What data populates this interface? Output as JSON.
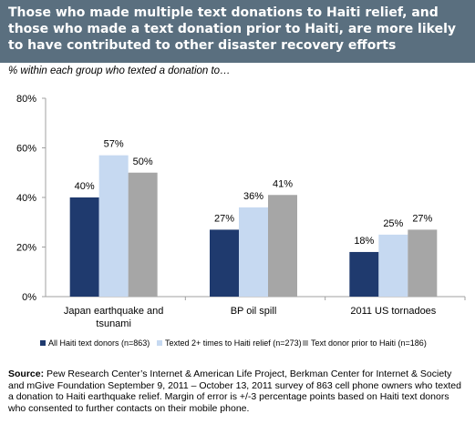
{
  "title": "Those who made multiple text donations to Haiti relief, and those who made a text donation prior to Haiti, are more likely to have contributed to other disaster recovery efforts",
  "subtitle": "% within each group who texted a donation to…",
  "source": {
    "label": "Source:",
    "text": "Pew Research Center’s Internet & American Life Project, Berkman Center for Internet & Society and mGive Foundation September 9, 2011 – October 13, 2011 survey of 863 cell phone owners who texted a donation to Haiti earthquake relief. Margin of error is +/-3 percentage points based on Haiti text donors who consented to further contacts on their mobile phone."
  },
  "colors": {
    "title_bar": "#5a6f7f",
    "series": [
      "#1f3a6e",
      "#c6d9f1",
      "#a6a6a6"
    ],
    "axis": "#a0a0a0"
  },
  "chart_data": {
    "type": "bar",
    "title": "",
    "xlabel": "",
    "ylabel": "",
    "ylim": [
      0,
      80
    ],
    "yticks": [
      0,
      20,
      40,
      60,
      80
    ],
    "ytick_labels": [
      "0%",
      "20%",
      "40%",
      "60%",
      "80%"
    ],
    "categories": [
      [
        "Japan earthquake and",
        "tsunami"
      ],
      [
        "BP oil spill"
      ],
      [
        "2011 US tornadoes"
      ]
    ],
    "series": [
      {
        "name": "All Haiti text donors (n=863)",
        "values": [
          40,
          27,
          18
        ],
        "labels": [
          "40%",
          "27%",
          "18%"
        ]
      },
      {
        "name": "Texted 2+ times to Haiti relief (n=273)",
        "values": [
          57,
          36,
          25
        ],
        "labels": [
          "57%",
          "36%",
          "25%"
        ]
      },
      {
        "name": "Text donor prior to Haiti (n=186)",
        "values": [
          50,
          41,
          27
        ],
        "labels": [
          "50%",
          "41%",
          "27%"
        ]
      }
    ],
    "legend_position": "bottom",
    "grid": false
  }
}
